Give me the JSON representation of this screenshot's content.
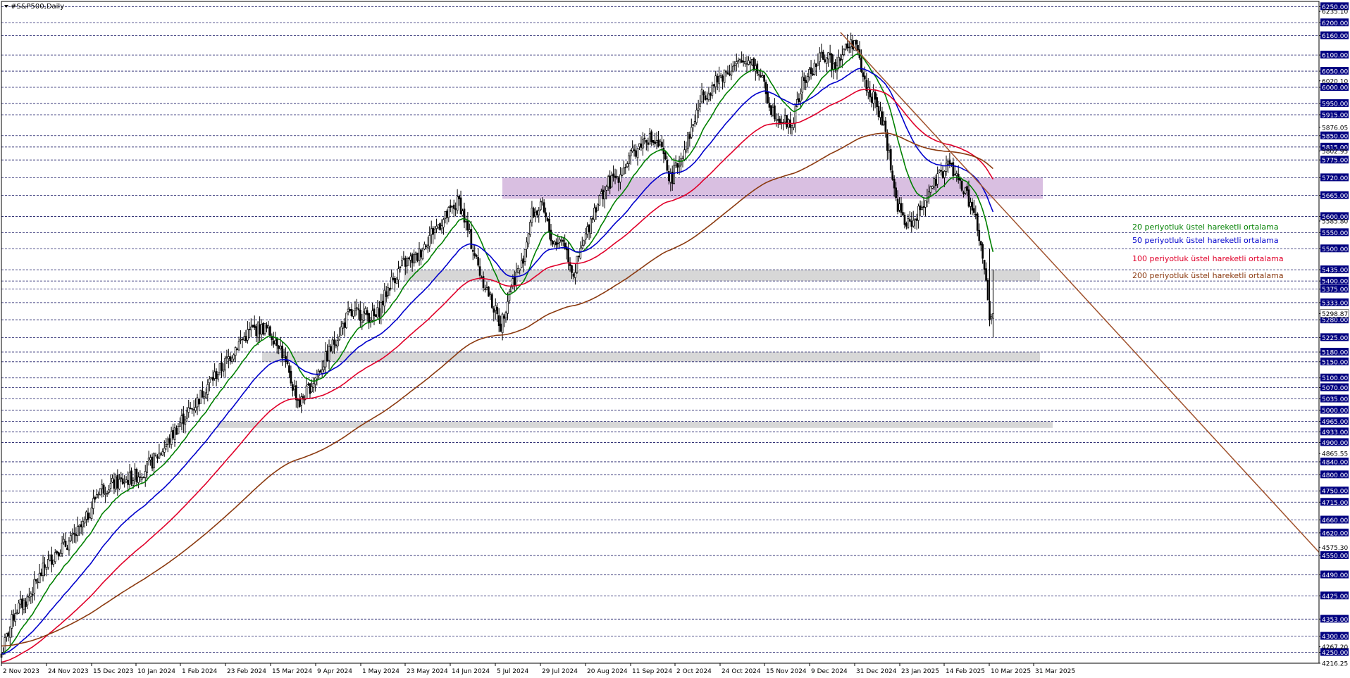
{
  "header": {
    "symbol_title": "#S&P500,Daily",
    "title_icon": "triangle-down-icon"
  },
  "colors": {
    "background": "#ffffff",
    "grid": "#1a1a66",
    "candle": "#000000",
    "ema20": "#008000",
    "ema50": "#0000cc",
    "ema100": "#e0002a",
    "ema200": "#8b3a10",
    "trendline": "#a0522d",
    "zone_purple": "#d2b4dc",
    "zone_gray": "#d3d3d3",
    "axis_box": "#000080"
  },
  "chart_data": {
    "type": "candlestick",
    "title": "#S&P500,Daily",
    "ylim": [
      4216.25,
      6266.0
    ],
    "y_ticks_plain": [
      6250,
      6200,
      6160,
      6100,
      6050,
      6000,
      5950,
      5915,
      5850,
      5815,
      5775,
      5720,
      5665,
      5600,
      5550,
      5500,
      5435,
      5400,
      5375,
      5333,
      5280,
      5225,
      5180,
      5150,
      5100,
      5070,
      5035,
      5000,
      4965,
      4933,
      4900,
      4840,
      4800,
      4750,
      4715,
      4660,
      4620,
      4550,
      4490,
      4425,
      4353,
      4300,
      4250
    ],
    "y_tick_labels": [
      "6250.00",
      "6200.00",
      "6160.00",
      "6100.00",
      "6050.00",
      "6000.00",
      "5950.00",
      "5915.00",
      "5850.00",
      "5815.00",
      "5775.00",
      "5720.00",
      "5665.00",
      "5600.00",
      "5550.00",
      "5500.00",
      "5435.00",
      "5400.00",
      "5375.00",
      "5333.00",
      "5280.00",
      "5225.00",
      "5180.00",
      "5150.00",
      "5100.00",
      "5070.00",
      "5035.00",
      "5000.00",
      "4965.00",
      "4933.00",
      "4900.00",
      "4840.00",
      "4800.00",
      "4750.00",
      "4715.00",
      "4660.00",
      "4620.00",
      "4550.00",
      "4490.00",
      "4425.00",
      "4353.00",
      "4300.00",
      "4250.00"
    ],
    "y_tick_extra": [
      {
        "value": 6235.1,
        "label": "6235.10"
      },
      {
        "value": 6020.1,
        "label": "6020.10"
      },
      {
        "value": 5876.05,
        "label": "5876.05"
      },
      {
        "value": 5802.95,
        "label": "5802.95"
      },
      {
        "value": 5585.8,
        "label": "5585.80"
      },
      {
        "value": 5298.87,
        "label": "5298.87"
      },
      {
        "value": 4865.55,
        "label": "4865.55"
      },
      {
        "value": 4575.3,
        "label": "4575.30"
      },
      {
        "value": 4267.2,
        "label": "4267.20"
      },
      {
        "value": 4216.25,
        "label": "4216.25"
      }
    ],
    "current_price": {
      "value": 5298.87,
      "label": "5298.87"
    },
    "x_labels": [
      "2 Nov 2023",
      "24 Nov 2023",
      "15 Dec 2023",
      "10 Jan 2024",
      "1 Feb 2024",
      "23 Feb 2024",
      "15 Mar 2024",
      "9 Apr 2024",
      "1 May 2024",
      "23 May 2024",
      "14 Jun 2024",
      "5 Jul 2024",
      "29 Jul 2024",
      "20 Aug 2024",
      "11 Sep 2024",
      "2 Oct 2024",
      "24 Oct 2024",
      "15 Nov 2024",
      "9 Dec 2024",
      "31 Dec 2024",
      "23 Jan 2025",
      "14 Feb 2025",
      "10 Mar 2025",
      "31 Mar 2025"
    ],
    "close_path": [
      [
        0,
        4245
      ],
      [
        8,
        4380
      ],
      [
        15,
        4415
      ],
      [
        25,
        4514
      ],
      [
        32,
        4567
      ],
      [
        40,
        4594
      ],
      [
        48,
        4650
      ],
      [
        56,
        4755
      ],
      [
        64,
        4769
      ],
      [
        72,
        4783
      ],
      [
        80,
        4804
      ],
      [
        88,
        4845
      ],
      [
        96,
        4900
      ],
      [
        104,
        4970
      ],
      [
        112,
        5020
      ],
      [
        120,
        5088
      ],
      [
        128,
        5137
      ],
      [
        136,
        5203
      ],
      [
        144,
        5248
      ],
      [
        152,
        5254
      ],
      [
        160,
        5210
      ],
      [
        166,
        5105
      ],
      [
        172,
        5020
      ],
      [
        178,
        5073
      ],
      [
        184,
        5128
      ],
      [
        192,
        5211
      ],
      [
        200,
        5294
      ],
      [
        208,
        5300
      ],
      [
        216,
        5286
      ],
      [
        224,
        5390
      ],
      [
        232,
        5454
      ],
      [
        240,
        5475
      ],
      [
        248,
        5550
      ],
      [
        256,
        5596
      ],
      [
        264,
        5648
      ],
      [
        270,
        5537
      ],
      [
        276,
        5427
      ],
      [
        282,
        5346
      ],
      [
        288,
        5261
      ],
      [
        294,
        5390
      ],
      [
        300,
        5450
      ],
      [
        306,
        5608
      ],
      [
        312,
        5626
      ],
      [
        318,
        5520
      ],
      [
        324,
        5528
      ],
      [
        330,
        5422
      ],
      [
        336,
        5520
      ],
      [
        342,
        5626
      ],
      [
        350,
        5702
      ],
      [
        356,
        5727
      ],
      [
        364,
        5792
      ],
      [
        372,
        5848
      ],
      [
        380,
        5815
      ],
      [
        386,
        5713
      ],
      [
        392,
        5783
      ],
      [
        398,
        5870
      ],
      [
        404,
        5973
      ],
      [
        410,
        6001
      ],
      [
        418,
        6051
      ],
      [
        426,
        6073
      ],
      [
        432,
        6090
      ],
      [
        438,
        6034
      ],
      [
        444,
        5935
      ],
      [
        450,
        5900
      ],
      [
        456,
        5881
      ],
      [
        462,
        6011
      ],
      [
        468,
        6056
      ],
      [
        474,
        6101
      ],
      [
        480,
        6070
      ],
      [
        486,
        6115
      ],
      [
        492,
        6144
      ],
      [
        498,
        6012
      ],
      [
        504,
        5954
      ],
      [
        510,
        5861
      ],
      [
        516,
        5649
      ],
      [
        522,
        5570
      ],
      [
        528,
        5599
      ],
      [
        534,
        5668
      ],
      [
        540,
        5712
      ],
      [
        546,
        5767
      ],
      [
        552,
        5712
      ],
      [
        558,
        5650
      ],
      [
        562,
        5590
      ],
      [
        564,
        5520
      ],
      [
        566,
        5470
      ],
      [
        568,
        5402
      ],
      [
        570,
        5280
      ],
      [
        572,
        5299
      ]
    ],
    "close_path_note": "x = trading-day index from 2 Nov 2023 (0) to last visible session (572)",
    "ema_last": {
      "ema20": 5660,
      "ema50": 5795,
      "ema100": 5850,
      "ema200": 5770
    },
    "zones": [
      {
        "label": "",
        "color": "purple",
        "from": 5655,
        "to": 5720
      },
      {
        "label": "",
        "color": "gray",
        "from": 5400,
        "to": 5435
      },
      {
        "label": "",
        "color": "gray",
        "from": 5150,
        "to": 5180
      },
      {
        "label": "",
        "color": "gray",
        "from": 4945,
        "to": 4965
      }
    ],
    "trendline": {
      "from": [
        484,
        6170
      ],
      "to": [
        760,
        4560
      ]
    },
    "legend": [
      {
        "name": "20 periyotluk üstel hareketli ortalama",
        "color": "#008000"
      },
      {
        "name": "50 periyotluk üstel hareketli ortalama",
        "color": "#0000cc"
      },
      {
        "name": "100 periyotluk üstel hareketli ortalama",
        "color": "#e0002a"
      },
      {
        "name": "200 periyotluk üstel hareketli ortalama",
        "color": "#8b3a10"
      }
    ],
    "legend_placement": "right-middle",
    "grid": true
  }
}
